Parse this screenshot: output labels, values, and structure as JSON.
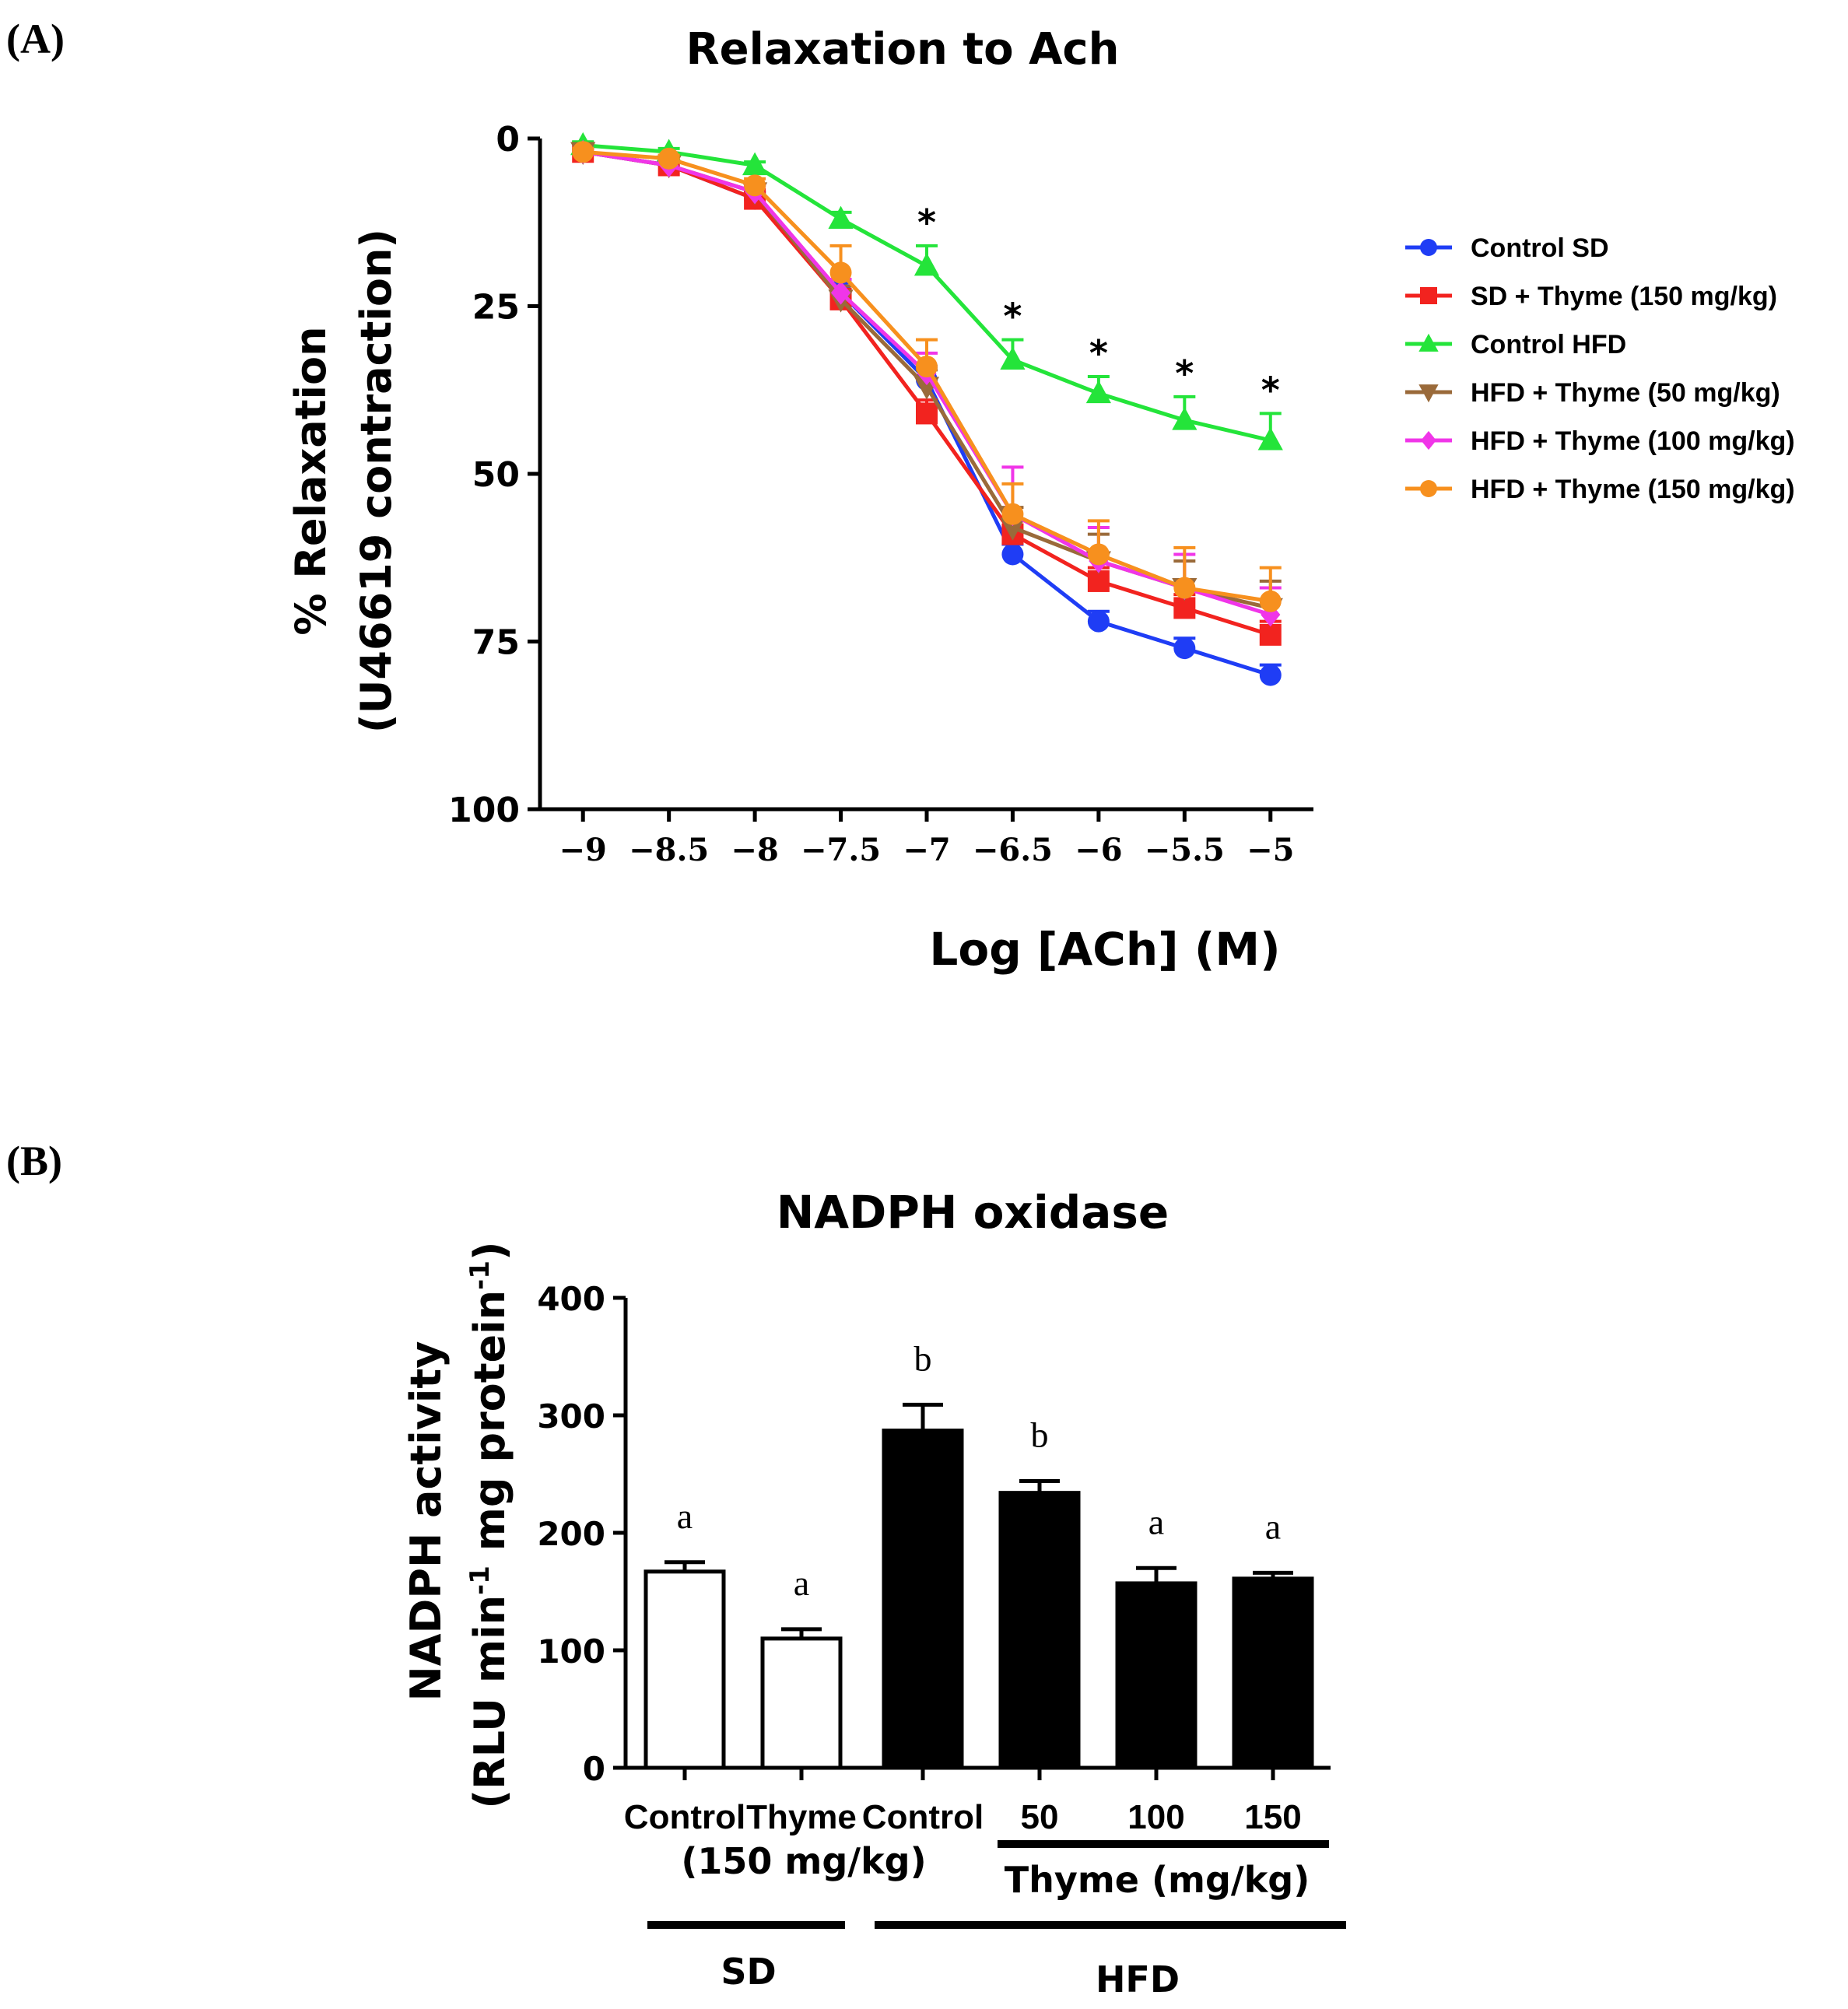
{
  "chart_data": [
    {
      "panel_label": "(A)",
      "type": "line",
      "title": "Relaxation to Ach",
      "xlabel": "Log [ACh] (M)",
      "ylabel_line1": "% Relaxation",
      "ylabel_line2": "(U46619 contraction)",
      "x": [
        -9,
        -8.5,
        -8,
        -7.5,
        -7,
        -6.5,
        -6,
        -5.5,
        -5
      ],
      "x_tick_labels": [
        "−9",
        "−8.5",
        "−8",
        "−7.5",
        "−7",
        "−6.5",
        "−6",
        "−5.5",
        "−5"
      ],
      "xlim": [
        -9.25,
        -4.75
      ],
      "y_tick_values": [
        0,
        25,
        50,
        75,
        100
      ],
      "y_tick_labels": [
        "0",
        "25",
        "50",
        "75",
        "100"
      ],
      "ylim": [
        0,
        100
      ],
      "y_inverted": true,
      "legend_position": "right",
      "significance_marker": "*",
      "significance_x": [
        -7,
        -6.5,
        -6,
        -5.5,
        -5
      ],
      "series": [
        {
          "name": "Control SD",
          "color": "#1f3df5",
          "marker": "circle",
          "values": [
            2,
            4,
            9,
            23,
            36,
            62,
            72,
            76,
            80
          ],
          "errors": [
            0.5,
            0.5,
            1,
            1.5,
            2,
            1.5,
            1.5,
            1.5,
            1.5
          ]
        },
        {
          "name": "SD + Thyme (150 mg/kg)",
          "color": "#f2231f",
          "marker": "square",
          "values": [
            2,
            4,
            9,
            24,
            41,
            59,
            66,
            70,
            74
          ],
          "errors": [
            0.5,
            0.5,
            1,
            1.5,
            2,
            2,
            2,
            2,
            2
          ]
        },
        {
          "name": "Control HFD",
          "color": "#24e43a",
          "marker": "triangle-up",
          "values": [
            1,
            2,
            4,
            12,
            19,
            33,
            38,
            42,
            45
          ],
          "errors": [
            0.5,
            0.5,
            0.5,
            1,
            3,
            3,
            2.5,
            3.5,
            4
          ]
        },
        {
          "name": "HFD + Thyme (50 mg/kg)",
          "color": "#9a6a3a",
          "marker": "triangle-down",
          "values": [
            2,
            4,
            8,
            24,
            37,
            58,
            63,
            67,
            70
          ],
          "errors": [
            0.5,
            0.5,
            1,
            2,
            2.5,
            3,
            4,
            4,
            4
          ]
        },
        {
          "name": "HFD + Thyme (100 mg/kg)",
          "color": "#f035e8",
          "marker": "diamond",
          "values": [
            2,
            4,
            8,
            23,
            35,
            56,
            63,
            67,
            71
          ],
          "errors": [
            0.5,
            0.5,
            1,
            2,
            3,
            7,
            5,
            5,
            4
          ]
        },
        {
          "name": "HFD + Thyme (150 mg/kg)",
          "color": "#f7901e",
          "marker": "circle",
          "values": [
            2,
            3,
            7,
            20,
            34,
            56,
            62,
            67,
            69
          ],
          "errors": [
            0.5,
            0.5,
            1,
            4,
            4,
            4.5,
            5,
            6,
            5
          ]
        }
      ]
    },
    {
      "panel_label": "(B)",
      "type": "bar",
      "title": "NADPH oxidase",
      "ylabel": "NADPH activity",
      "ylabel_units": {
        "prefix": "(RLU  min",
        "sup1": "-1",
        "middle": " mg protein",
        "sup2": "-1",
        "suffix": ")"
      },
      "ylim": [
        0,
        400
      ],
      "y_tick_values": [
        0,
        100,
        200,
        300,
        400
      ],
      "y_tick_labels": [
        "0",
        "100",
        "200",
        "300",
        "400"
      ],
      "categories": [
        "Control",
        "Thyme",
        "Control",
        "50",
        "100",
        "150"
      ],
      "values": [
        167,
        110,
        287,
        234,
        157,
        161
      ],
      "errors": [
        8,
        8,
        22,
        10,
        13,
        5
      ],
      "fills": [
        "#ffffff",
        "#ffffff",
        "#000000",
        "#000000",
        "#000000",
        "#000000"
      ],
      "letters": [
        "a",
        "a",
        "b",
        "b",
        "a",
        "a"
      ],
      "dose_sublabel": "(150 mg/kg)",
      "thyme_group_label": "Thyme (mg/kg)",
      "groups": [
        {
          "label": "SD",
          "from": 0,
          "to": 1
        },
        {
          "label": "HFD",
          "from": 2,
          "to": 5
        }
      ]
    }
  ]
}
